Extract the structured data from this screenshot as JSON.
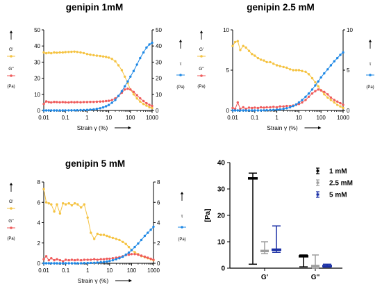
{
  "chart_data": [
    {
      "type": "line",
      "title": "genipin 1mM",
      "xlabel": "Strain γ (%)",
      "xscale": "log",
      "xlim": [
        0.01,
        1000
      ],
      "x_ticks": [
        "0.01",
        "0.1",
        "1",
        "10",
        "100",
        "1000"
      ],
      "ylim_left": [
        0,
        50
      ],
      "ylim_right": [
        0,
        50
      ],
      "y_ticks_left": [
        "0",
        "10",
        "20",
        "30",
        "40",
        "50"
      ],
      "y_ticks_right": [
        "0",
        "10",
        "20",
        "30",
        "40",
        "50"
      ],
      "legend": [
        {
          "label": "G'",
          "unit": "",
          "color": "#f5c342",
          "axis": "left"
        },
        {
          "label": "G''",
          "unit": "(Pa)",
          "color": "#ef5b5b",
          "axis": "left"
        },
        {
          "label": "τ",
          "unit": "(Pa)",
          "color": "#1e88e5",
          "axis": "right"
        }
      ],
      "series": [
        {
          "name": "G'",
          "axis": "left",
          "color": "#f5c342",
          "x": [
            0.01,
            0.013,
            0.017,
            0.022,
            0.03,
            0.04,
            0.055,
            0.075,
            0.1,
            0.14,
            0.19,
            0.26,
            0.35,
            0.5,
            0.7,
            1,
            1.4,
            2,
            2.8,
            4,
            5.5,
            7.5,
            10,
            14,
            20,
            28,
            40,
            55,
            75,
            100,
            140,
            200,
            280,
            400,
            550,
            750,
            1000
          ],
          "y": [
            36,
            35.5,
            35.8,
            35.5,
            36,
            35.8,
            36,
            36,
            36.2,
            36.3,
            36.4,
            36.5,
            36.3,
            36,
            35.6,
            35,
            34.6,
            34.3,
            34,
            33.8,
            33.5,
            33.2,
            32.8,
            32,
            30.5,
            28,
            25,
            21,
            17,
            13,
            10,
            7.5,
            5.5,
            4,
            3,
            2,
            1.5
          ]
        },
        {
          "name": "G''",
          "axis": "left",
          "color": "#ef5b5b",
          "x": [
            0.01,
            0.013,
            0.017,
            0.022,
            0.03,
            0.04,
            0.055,
            0.075,
            0.1,
            0.14,
            0.19,
            0.26,
            0.35,
            0.5,
            0.7,
            1,
            1.4,
            2,
            2.8,
            4,
            5.5,
            7.5,
            10,
            14,
            20,
            28,
            40,
            55,
            75,
            100,
            140,
            200,
            280,
            400,
            550,
            750,
            1000
          ],
          "y": [
            4,
            5.6,
            5.2,
            5,
            5.3,
            5.2,
            5.1,
            5.2,
            5.1,
            5,
            5.2,
            5.1,
            5.2,
            5.1,
            5.2,
            5.2,
            5.3,
            5.3,
            5.4,
            5.5,
            5.6,
            5.8,
            6,
            6.5,
            7.5,
            9,
            11,
            13,
            13.5,
            13,
            11.5,
            9.5,
            7.5,
            5.8,
            4.5,
            3.5,
            2.8
          ]
        },
        {
          "name": "τ",
          "axis": "right",
          "color": "#1e88e5",
          "x": [
            0.01,
            0.013,
            0.017,
            0.022,
            0.03,
            0.04,
            0.055,
            0.075,
            0.1,
            0.14,
            0.19,
            0.26,
            0.35,
            0.5,
            0.7,
            1,
            1.4,
            2,
            2.8,
            4,
            5.5,
            7.5,
            10,
            14,
            20,
            28,
            40,
            55,
            75,
            100,
            140,
            200,
            280,
            400,
            550,
            750,
            1000
          ],
          "y": [
            0,
            0,
            0,
            0,
            0,
            0,
            0,
            0,
            0.05,
            0.05,
            0.1,
            0.1,
            0.15,
            0.2,
            0.25,
            0.35,
            0.5,
            0.7,
            1,
            1.4,
            1.9,
            2.6,
            3.4,
            4.8,
            6.5,
            9,
            12,
            15,
            18,
            21,
            24.5,
            28.5,
            32.5,
            36,
            39,
            41,
            42
          ]
        }
      ]
    },
    {
      "type": "line",
      "title": "genipin 2.5 mM",
      "xlabel": "Strain γ (%)",
      "xscale": "log",
      "xlim": [
        0.01,
        1000
      ],
      "x_ticks": [
        "0.01",
        "0.1",
        "1",
        "10",
        "100",
        "1000"
      ],
      "ylim_left": [
        0,
        10
      ],
      "ylim_right": [
        0,
        10
      ],
      "y_ticks_left": [
        "0",
        "5",
        "10"
      ],
      "y_ticks_right": [
        "0",
        "5",
        "10"
      ],
      "legend": [
        {
          "label": "G'",
          "unit": "",
          "color": "#f5c342",
          "axis": "left"
        },
        {
          "label": "G''",
          "unit": "(Pa)",
          "color": "#ef5b5b",
          "axis": "left"
        },
        {
          "label": "τ",
          "unit": "(Pa)",
          "color": "#1e88e5",
          "axis": "right"
        }
      ],
      "series": [
        {
          "name": "G'",
          "axis": "left",
          "color": "#f5c342",
          "x": [
            0.01,
            0.013,
            0.017,
            0.022,
            0.03,
            0.04,
            0.055,
            0.075,
            0.1,
            0.14,
            0.19,
            0.26,
            0.35,
            0.5,
            0.7,
            1,
            1.4,
            2,
            2.8,
            4,
            5.5,
            7.5,
            10,
            14,
            20,
            28,
            40,
            55,
            75,
            100,
            140,
            200,
            280,
            400,
            550,
            750,
            1000
          ],
          "y": [
            8,
            8.5,
            8.6,
            7.5,
            8,
            7.8,
            7.4,
            7,
            6.8,
            6.5,
            6.3,
            6.2,
            6,
            6,
            5.8,
            5.6,
            5.5,
            5.4,
            5.3,
            5.1,
            5,
            5,
            5,
            4.9,
            4.8,
            4.5,
            4,
            3.5,
            3,
            2.5,
            2,
            1.6,
            1.3,
            1,
            0.7,
            0.5,
            0.3
          ]
        },
        {
          "name": "G''",
          "axis": "left",
          "color": "#ef5b5b",
          "x": [
            0.01,
            0.013,
            0.017,
            0.022,
            0.03,
            0.04,
            0.055,
            0.075,
            0.1,
            0.14,
            0.19,
            0.26,
            0.35,
            0.5,
            0.7,
            1,
            1.4,
            2,
            2.8,
            4,
            5.5,
            7.5,
            10,
            14,
            20,
            28,
            40,
            55,
            75,
            100,
            140,
            200,
            280,
            400,
            550,
            750,
            1000
          ],
          "y": [
            0.3,
            0.2,
            1,
            0.2,
            0.4,
            0.2,
            0.35,
            0.3,
            0.35,
            0.3,
            0.4,
            0.35,
            0.4,
            0.4,
            0.45,
            0.4,
            0.5,
            0.5,
            0.55,
            0.55,
            0.6,
            0.7,
            0.8,
            1,
            1.3,
            1.7,
            2.1,
            2.4,
            2.6,
            2.5,
            2.3,
            2,
            1.6,
            1.3,
            1.1,
            0.9,
            0.7
          ]
        },
        {
          "name": "τ",
          "axis": "right",
          "color": "#1e88e5",
          "x": [
            0.01,
            0.013,
            0.017,
            0.022,
            0.03,
            0.04,
            0.055,
            0.075,
            0.1,
            0.14,
            0.19,
            0.26,
            0.35,
            0.5,
            0.7,
            1,
            1.4,
            2,
            2.8,
            4,
            5.5,
            7.5,
            10,
            14,
            20,
            28,
            40,
            55,
            75,
            100,
            140,
            200,
            280,
            400,
            550,
            750,
            1000
          ],
          "y": [
            0,
            0,
            0,
            0,
            0,
            0,
            0,
            0,
            0,
            0,
            0,
            0.02,
            0.03,
            0.05,
            0.07,
            0.1,
            0.14,
            0.2,
            0.28,
            0.4,
            0.55,
            0.75,
            1,
            1.3,
            1.7,
            2.1,
            2.6,
            3.1,
            3.6,
            4.1,
            4.6,
            5.1,
            5.6,
            6.1,
            6.5,
            6.9,
            7.2
          ]
        }
      ]
    },
    {
      "type": "line",
      "title": "genipin 5 mM",
      "xlabel": "Strain γ (%)",
      "xscale": "log",
      "xlim": [
        0.01,
        1000
      ],
      "x_ticks": [
        "0.01",
        "0.1",
        "1",
        "10",
        "100",
        "1000"
      ],
      "ylim_left": [
        0,
        8
      ],
      "ylim_right": [
        0,
        8
      ],
      "y_ticks_left": [
        "0",
        "2",
        "4",
        "6",
        "8"
      ],
      "y_ticks_right": [
        "0",
        "2",
        "4",
        "6",
        "8"
      ],
      "legend": [
        {
          "label": "G'",
          "unit": "",
          "color": "#f5c342",
          "axis": "left"
        },
        {
          "label": "G''",
          "unit": "(Pa)",
          "color": "#ef5b5b",
          "axis": "left"
        },
        {
          "label": "τ",
          "unit": "(Pa)",
          "color": "#1e88e5",
          "axis": "right"
        }
      ],
      "series": [
        {
          "name": "G'",
          "axis": "left",
          "color": "#f5c342",
          "x": [
            0.01,
            0.013,
            0.017,
            0.022,
            0.03,
            0.04,
            0.055,
            0.075,
            0.1,
            0.14,
            0.19,
            0.26,
            0.35,
            0.5,
            0.7,
            1,
            1.4,
            2,
            2.8,
            4,
            5.5,
            7.5,
            10,
            14,
            20,
            28,
            40,
            55,
            75,
            100,
            140,
            200,
            280,
            400,
            550,
            750,
            1000
          ],
          "y": [
            7.3,
            6,
            5.9,
            5.8,
            5.1,
            5.8,
            4.9,
            5.9,
            5.8,
            5.9,
            5.7,
            5.9,
            5.8,
            5.5,
            5.8,
            4.5,
            3,
            2.4,
            2.9,
            2.8,
            2.8,
            2.7,
            2.6,
            2.5,
            2.4,
            2.3,
            2.1,
            1.9,
            1.6,
            1.3,
            1.1,
            0.9,
            0.7,
            0.6,
            0.5,
            0.4,
            0.3
          ]
        },
        {
          "name": "G''",
          "axis": "left",
          "color": "#ef5b5b",
          "x": [
            0.01,
            0.013,
            0.017,
            0.022,
            0.03,
            0.04,
            0.055,
            0.075,
            0.1,
            0.14,
            0.19,
            0.26,
            0.35,
            0.5,
            0.7,
            1,
            1.4,
            2,
            2.8,
            4,
            5.5,
            7.5,
            10,
            14,
            20,
            28,
            40,
            55,
            75,
            100,
            140,
            200,
            280,
            400,
            550,
            750,
            1000
          ],
          "y": [
            0.4,
            0.7,
            0.3,
            0.5,
            0.3,
            0.4,
            0.3,
            0.2,
            0.35,
            0.3,
            0.35,
            0.3,
            0.35,
            0.3,
            0.35,
            0.35,
            0.35,
            0.4,
            0.35,
            0.4,
            0.4,
            0.45,
            0.45,
            0.5,
            0.55,
            0.6,
            0.7,
            0.8,
            0.85,
            0.9,
            0.9,
            0.85,
            0.75,
            0.65,
            0.55,
            0.45,
            0.35
          ]
        },
        {
          "name": "τ",
          "axis": "right",
          "color": "#1e88e5",
          "x": [
            0.01,
            0.013,
            0.017,
            0.022,
            0.03,
            0.04,
            0.055,
            0.075,
            0.1,
            0.14,
            0.19,
            0.26,
            0.35,
            0.5,
            0.7,
            1,
            1.4,
            2,
            2.8,
            4,
            5.5,
            7.5,
            10,
            14,
            20,
            28,
            40,
            55,
            75,
            100,
            140,
            200,
            280,
            400,
            550,
            750,
            1000
          ],
          "y": [
            0,
            0,
            0,
            0,
            0,
            0,
            0,
            0,
            0,
            0,
            0,
            0,
            0,
            0.01,
            0.02,
            0.03,
            0.04,
            0.05,
            0.07,
            0.1,
            0.13,
            0.17,
            0.22,
            0.3,
            0.4,
            0.5,
            0.65,
            0.85,
            1.05,
            1.3,
            1.6,
            1.95,
            2.3,
            2.7,
            3,
            3.3,
            3.6
          ]
        }
      ]
    },
    {
      "type": "bar",
      "bar_style": "median with range (error bars)",
      "categories": [
        "G'",
        "G''"
      ],
      "ylabel": "[Pa]",
      "ylim": [
        0,
        40
      ],
      "y_ticks": [
        "0",
        "10",
        "20",
        "30",
        "40"
      ],
      "legend_position": "top-right",
      "series": [
        {
          "name": "1 mM",
          "color": "#000000",
          "median": [
            34,
            4.5
          ],
          "min": [
            1.5,
            0.5
          ],
          "max": [
            36,
            5
          ]
        },
        {
          "name": "2.5 mM",
          "color": "#9e9e9e",
          "median": [
            6.5,
            0.8
          ],
          "min": [
            5.5,
            0
          ],
          "max": [
            10,
            5
          ]
        },
        {
          "name": "5 mM",
          "color": "#1a2fa6",
          "median": [
            7,
            0.8
          ],
          "min": [
            6,
            0.4
          ],
          "max": [
            16,
            1.5
          ]
        }
      ]
    }
  ]
}
